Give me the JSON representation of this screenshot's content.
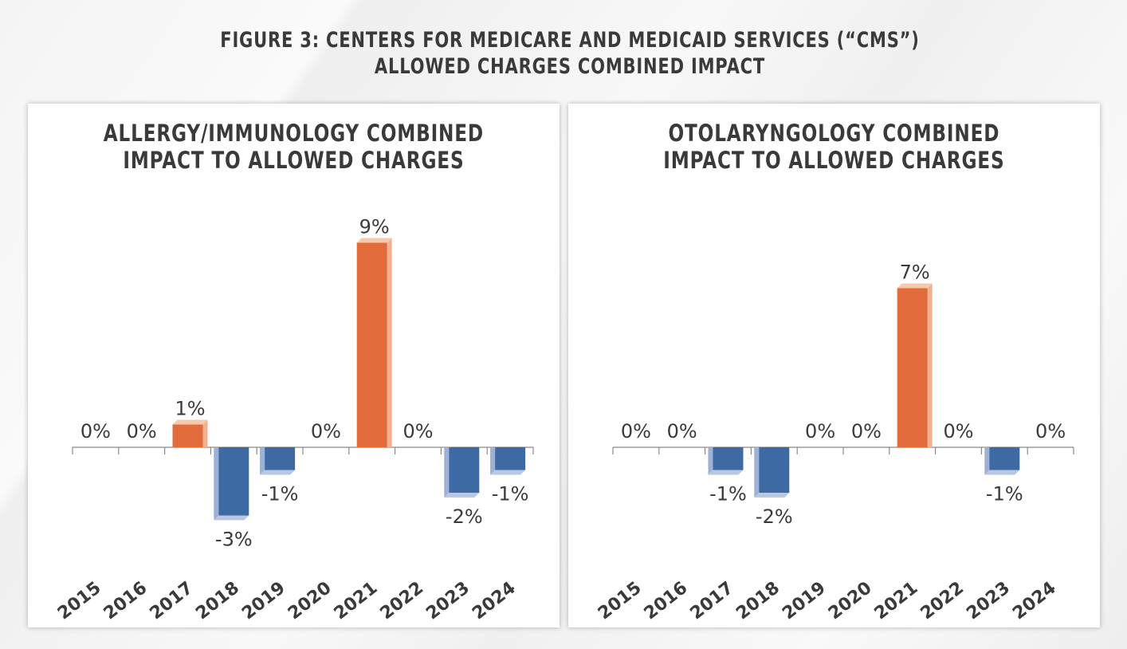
{
  "figure": {
    "title_line1": "FIGURE 3: CENTERS FOR MEDICARE AND MEDICAID SERVICES (“CMS”)",
    "title_line2": "ALLOWED CHARGES COMBINED IMPACT"
  },
  "colors": {
    "positive": "#e26b3c",
    "positive_side": "#f2b290",
    "negative": "#3e6aa3",
    "negative_side": "#9db1d6",
    "axis": "#8a8a8a",
    "text": "#3a3a3a"
  },
  "chart_data": [
    {
      "type": "bar",
      "title_line1": "ALLERGY/IMMUNOLOGY COMBINED",
      "title_line2": "IMPACT TO ALLOWED CHARGES",
      "categories": [
        "2015",
        "2016",
        "2017",
        "2018",
        "2019",
        "2020",
        "2021",
        "2022",
        "2023",
        "2024"
      ],
      "values": [
        0,
        0,
        1,
        -3,
        -1,
        0,
        9,
        0,
        -2,
        -1
      ],
      "data_labels": [
        "0%",
        "0%",
        "1%",
        "-3%",
        "-1%",
        "0%",
        "9%",
        "0%",
        "-2%",
        "-1%"
      ],
      "ylim": [
        -4,
        10
      ],
      "xlabel": "",
      "ylabel": "",
      "grid": false,
      "legend": "none"
    },
    {
      "type": "bar",
      "title_line1": "OTOLARYNGOLOGY COMBINED",
      "title_line2": "IMPACT TO ALLOWED CHARGES",
      "categories": [
        "2015",
        "2016",
        "2017",
        "2018",
        "2019",
        "2020",
        "2021",
        "2022",
        "2023",
        "2024"
      ],
      "values": [
        0,
        0,
        -1,
        -2,
        0,
        0,
        7,
        0,
        -1,
        0
      ],
      "data_labels": [
        "0%",
        "0%",
        "-1%",
        "-2%",
        "0%",
        "0%",
        "7%",
        "0%",
        "-1%",
        "0%"
      ],
      "ylim": [
        -4,
        10
      ],
      "xlabel": "",
      "ylabel": "",
      "grid": false,
      "legend": "none"
    }
  ]
}
